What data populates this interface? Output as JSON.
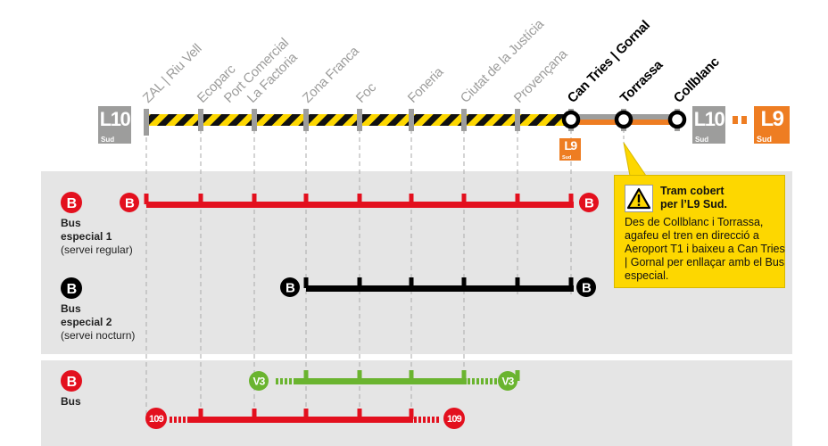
{
  "colors": {
    "l10": "#9d9d9c",
    "l9": "#ee7d22",
    "bus": "#e3101e",
    "bus_night": "#000000",
    "v3": "#6ab42f",
    "hazard": "#fdd700",
    "panel": "#e5e5e5"
  },
  "line_badges": {
    "l10": "L10",
    "l9": "L9",
    "sud": "Sud"
  },
  "stations": [
    {
      "name": "ZAL | Riu Vell",
      "active": false
    },
    {
      "name": "Ecoparc",
      "active": false
    },
    {
      "name": "Port Comercial",
      "name2": "La Factoria",
      "active": false
    },
    {
      "name": "Zona Franca",
      "active": false
    },
    {
      "name": "Foc",
      "active": false
    },
    {
      "name": "Foneria",
      "active": false
    },
    {
      "name": "Ciutat de la Justícia",
      "active": false
    },
    {
      "name": "Provençana",
      "active": false
    },
    {
      "name": "Can Tries | Gornal",
      "active": true
    },
    {
      "name": "Torrassa",
      "active": true
    },
    {
      "name": "Collblanc",
      "active": true
    }
  ],
  "buses": [
    {
      "icon": "B",
      "label1": "Bus",
      "label2": "especial 1",
      "label3": "(servei regular)"
    },
    {
      "icon": "B",
      "label1": "Bus",
      "label2": "especial 2",
      "label3": "(servei nocturn)"
    },
    {
      "icon": "B",
      "label1": "Bus"
    }
  ],
  "routes": {
    "v3": "V3",
    "r109": "109"
  },
  "note": {
    "icon": "warning-icon",
    "title1": "Tram cobert",
    "title2": "per l’L9 Sud.",
    "body": "Des de Collblanc i Torrassa, agafeu el tren en direcció a Aeroport T1 i baixeu a Can Tries | Gornal per enllaçar amb el Bus especial."
  }
}
